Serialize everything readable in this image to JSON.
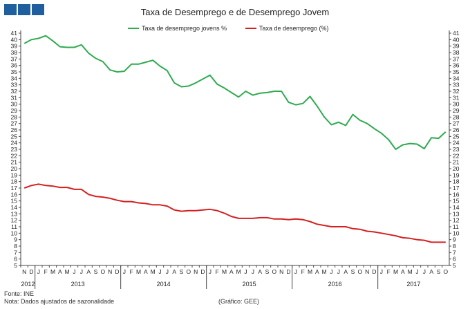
{
  "header": {
    "logo_blocks": [
      "block",
      "block",
      "block"
    ]
  },
  "footer": {
    "source": "Fonte: INE",
    "note": "Nota: Dados ajustados de sazonalidade",
    "credit": "(Gráfico: GEE)"
  },
  "chart_data": {
    "type": "line",
    "title": "Taxa de Desemprego e de Desemprego Jovem",
    "xlabel": "",
    "ylabel": "",
    "ylim": [
      5,
      41
    ],
    "y_ticks": [
      5,
      6,
      7,
      8,
      9,
      10,
      11,
      12,
      13,
      14,
      15,
      16,
      17,
      18,
      19,
      20,
      21,
      22,
      23,
      24,
      25,
      26,
      27,
      28,
      29,
      30,
      31,
      32,
      33,
      34,
      35,
      36,
      37,
      38,
      39,
      40,
      41
    ],
    "grid": false,
    "legend_position": "top-center",
    "month_labels": [
      "N",
      "D",
      "J",
      "F",
      "M",
      "A",
      "M",
      "J",
      "J",
      "A",
      "S",
      "O",
      "N",
      "D",
      "J",
      "F",
      "M",
      "A",
      "M",
      "J",
      "J",
      "A",
      "S",
      "O",
      "N",
      "D",
      "J",
      "F",
      "M",
      "A",
      "M",
      "J",
      "J",
      "A",
      "S",
      "O",
      "N",
      "D",
      "J",
      "F",
      "M",
      "A",
      "M",
      "J",
      "J",
      "A",
      "S",
      "O",
      "N",
      "D",
      "J",
      "F",
      "M",
      "A",
      "M",
      "J",
      "J",
      "A",
      "S",
      "O"
    ],
    "year_labels": [
      {
        "label": "2012",
        "start_index": 0,
        "end_index": 1
      },
      {
        "label": "2013",
        "start_index": 2,
        "end_index": 13
      },
      {
        "label": "2014",
        "start_index": 14,
        "end_index": 25
      },
      {
        "label": "2015",
        "start_index": 26,
        "end_index": 37
      },
      {
        "label": "2016",
        "start_index": 38,
        "end_index": 49
      },
      {
        "label": "2017",
        "start_index": 50,
        "end_index": 59
      }
    ],
    "series": [
      {
        "name": "Taxa de desemprego jovens %",
        "color": "#2eaa4f",
        "values": [
          39.4,
          40.0,
          40.2,
          40.6,
          39.8,
          38.9,
          38.8,
          38.8,
          39.2,
          37.9,
          37.1,
          36.6,
          35.3,
          35.0,
          35.1,
          36.2,
          36.2,
          36.5,
          36.8,
          35.9,
          35.2,
          33.3,
          32.7,
          32.8,
          33.3,
          33.9,
          34.5,
          33.1,
          32.5,
          31.8,
          31.1,
          32.0,
          31.4,
          31.7,
          31.8,
          32.0,
          32.0,
          30.3,
          29.9,
          30.1,
          31.2,
          29.7,
          28.0,
          26.8,
          27.2,
          26.7,
          28.4,
          27.5,
          27.0,
          26.2,
          25.5,
          24.5,
          23.0,
          23.7,
          23.9,
          23.8,
          23.1,
          24.8,
          24.7,
          25.7
        ]
      },
      {
        "name": "Taxa de desemprego (%)",
        "color": "#d42020",
        "values": [
          17.0,
          17.4,
          17.6,
          17.4,
          17.3,
          17.1,
          17.1,
          16.8,
          16.8,
          16.0,
          15.7,
          15.6,
          15.4,
          15.1,
          14.9,
          14.9,
          14.7,
          14.6,
          14.4,
          14.4,
          14.2,
          13.6,
          13.4,
          13.5,
          13.5,
          13.6,
          13.7,
          13.5,
          13.1,
          12.6,
          12.3,
          12.3,
          12.3,
          12.4,
          12.4,
          12.2,
          12.2,
          12.1,
          12.2,
          12.1,
          11.8,
          11.4,
          11.2,
          11.0,
          11.0,
          11.0,
          10.7,
          10.6,
          10.3,
          10.2,
          10.0,
          9.8,
          9.6,
          9.3,
          9.2,
          9.0,
          8.9,
          8.6,
          8.6,
          8.6
        ]
      }
    ]
  }
}
